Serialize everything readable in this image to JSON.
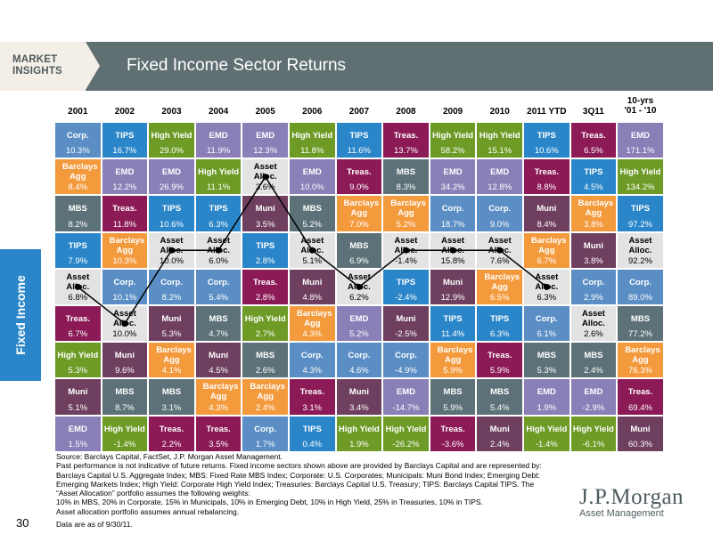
{
  "header": {
    "badge": "MARKET INSIGHTS",
    "title": "Fixed Income Sector Returns"
  },
  "side_label": "Fixed Income",
  "page_number": "30",
  "logo": {
    "name": "J.P.Morgan",
    "subtitle": "Asset Management"
  },
  "colors": {
    "Corp.": "#5b8ec4",
    "TIPS": "#2a86c8",
    "High Yield": "#6d9b26",
    "EMD": "#8b7fb8",
    "Barclays Agg": "#f39a3d",
    "Treas.": "#8b1a56",
    "MBS": "#5c7278",
    "Muni": "#6e3f5e",
    "Asset Alloc.": "#e3e3e3"
  },
  "footnotes": {
    "source": "Source: Barclays Capital, FactSet, J.P. Morgan Asset Management.",
    "line1": "Past performance is not indicative of future returns. Fixed income sectors shown above are provided by Barclays Capital and are represented by: Barclays Capital U.S. Aggregate Index; MBS: Fixed Rate MBS Index; Corporate: U.S. Corporates; Municipals: Muni Bond Index; Emerging Debt: Emerging Markets Index; High Yield: Corporate High Yield Index; Treasuries: Barclays Capital U.S. Treasury; TIPS: Barclays Capital TIPS. The “Asset Allocation” portfolio assumes the following weights:",
    "line2": "10% in MBS, 20% in Corporate, 15% in Municipals, 10% in Emerging Debt, 10% in High Yield, 25% in Treasuries, 10% in TIPS.",
    "line3": "Asset allocation portfolio assumes annual rebalancing.",
    "data_date": "Data are as of 9/30/11."
  },
  "chart_data": {
    "type": "table",
    "columns": [
      "2001",
      "2002",
      "2003",
      "2004",
      "2005",
      "2006",
      "2007",
      "2008",
      "2009",
      "2010",
      "2011 YTD",
      "3Q11",
      "10-yrs '01 - '10"
    ],
    "column_labels": [
      [
        "2001"
      ],
      [
        "2002"
      ],
      [
        "2003"
      ],
      [
        "2004"
      ],
      [
        "2005"
      ],
      [
        "2006"
      ],
      [
        "2007"
      ],
      [
        "2008"
      ],
      [
        "2009"
      ],
      [
        "2010"
      ],
      [
        "2011 YTD"
      ],
      [
        "3Q11"
      ],
      [
        "10-yrs",
        "'01 - '10"
      ]
    ],
    "rank_rows": [
      [
        [
          "Corp.",
          "10.3%"
        ],
        [
          "TIPS",
          "16.7%"
        ],
        [
          "High Yield",
          "29.0%"
        ],
        [
          "EMD",
          "11.9%"
        ],
        [
          "EMD",
          "12.3%"
        ],
        [
          "High Yield",
          "11.8%"
        ],
        [
          "TIPS",
          "11.6%"
        ],
        [
          "Treas.",
          "13.7%"
        ],
        [
          "High Yield",
          "58.2%"
        ],
        [
          "High Yield",
          "15.1%"
        ],
        [
          "TIPS",
          "10.6%"
        ],
        [
          "Treas.",
          "6.5%"
        ],
        [
          "EMD",
          "171.1%"
        ]
      ],
      [
        [
          "Barclays Agg",
          "8.4%"
        ],
        [
          "EMD",
          "12.2%"
        ],
        [
          "EMD",
          "26.9%"
        ],
        [
          "High Yield",
          "11.1%"
        ],
        [
          "Asset Alloc.",
          "3.6%"
        ],
        [
          "EMD",
          "10.0%"
        ],
        [
          "Treas.",
          "9.0%"
        ],
        [
          "MBS",
          "8.3%"
        ],
        [
          "EMD",
          "34.2%"
        ],
        [
          "EMD",
          "12.8%"
        ],
        [
          "Treas.",
          "8.8%"
        ],
        [
          "TIPS",
          "4.5%"
        ],
        [
          "High Yield",
          "134.2%"
        ]
      ],
      [
        [
          "MBS",
          "8.2%"
        ],
        [
          "Treas.",
          "11.8%"
        ],
        [
          "TIPS",
          "10.6%"
        ],
        [
          "TIPS",
          "6.3%"
        ],
        [
          "Muni",
          "3.5%"
        ],
        [
          "MBS",
          "5.2%"
        ],
        [
          "Barclays Agg",
          "7.0%"
        ],
        [
          "Barclays Agg",
          "5.2%"
        ],
        [
          "Corp.",
          "18.7%"
        ],
        [
          "Corp.",
          "9.0%"
        ],
        [
          "Muni",
          "8.4%"
        ],
        [
          "Barclays Agg",
          "3.8%"
        ],
        [
          "TIPS",
          "97.2%"
        ]
      ],
      [
        [
          "TIPS",
          "7.9%"
        ],
        [
          "Barclays Agg",
          "10.3%"
        ],
        [
          "Asset Alloc.",
          "10.0%"
        ],
        [
          "Asset Alloc.",
          "6.0%"
        ],
        [
          "TIPS",
          "2.8%"
        ],
        [
          "Asset Alloc.",
          "5.1%"
        ],
        [
          "MBS",
          "6.9%"
        ],
        [
          "Asset Alloc.",
          "-1.4%"
        ],
        [
          "Asset Alloc.",
          "15.8%"
        ],
        [
          "Asset Alloc.",
          "7.6%"
        ],
        [
          "Barclays Agg",
          "6.7%"
        ],
        [
          "Muni",
          "3.8%"
        ],
        [
          "Asset Alloc.",
          "92.2%"
        ]
      ],
      [
        [
          "Asset Alloc.",
          "6.8%"
        ],
        [
          "Corp.",
          "10.1%"
        ],
        [
          "Corp.",
          "8.2%"
        ],
        [
          "Corp.",
          "5.4%"
        ],
        [
          "Treas.",
          "2.8%"
        ],
        [
          "Muni",
          "4.8%"
        ],
        [
          "Asset Alloc.",
          "6.2%"
        ],
        [
          "TIPS",
          "-2.4%"
        ],
        [
          "Muni",
          "12.9%"
        ],
        [
          "Barclays Agg",
          "6.5%"
        ],
        [
          "Asset Alloc.",
          "6.3%"
        ],
        [
          "Corp.",
          "2.9%"
        ],
        [
          "Corp.",
          "89.0%"
        ]
      ],
      [
        [
          "Treas.",
          "6.7%"
        ],
        [
          "Asset Alloc.",
          "10.0%"
        ],
        [
          "Muni",
          "5.3%"
        ],
        [
          "MBS",
          "4.7%"
        ],
        [
          "High Yield",
          "2.7%"
        ],
        [
          "Barclays Agg",
          "4.3%"
        ],
        [
          "EMD",
          "5.2%"
        ],
        [
          "Muni",
          "-2.5%"
        ],
        [
          "TIPS",
          "11.4%"
        ],
        [
          "TIPS",
          "6.3%"
        ],
        [
          "Corp.",
          "6.1%"
        ],
        [
          "Asset Alloc.",
          "2.6%"
        ],
        [
          "MBS",
          "77.2%"
        ]
      ],
      [
        [
          "High Yield",
          "5.3%"
        ],
        [
          "Muni",
          "9.6%"
        ],
        [
          "Barclays Agg",
          "4.1%"
        ],
        [
          "Muni",
          "4.5%"
        ],
        [
          "MBS",
          "2.6%"
        ],
        [
          "Corp.",
          "4.3%"
        ],
        [
          "Corp.",
          "4.6%"
        ],
        [
          "Corp.",
          "-4.9%"
        ],
        [
          "Barclays Agg",
          "5.9%"
        ],
        [
          "Treas.",
          "5.9%"
        ],
        [
          "MBS",
          "5.3%"
        ],
        [
          "MBS",
          "2.4%"
        ],
        [
          "Barclays Agg",
          "76.3%"
        ]
      ],
      [
        [
          "Muni",
          "5.1%"
        ],
        [
          "MBS",
          "8.7%"
        ],
        [
          "MBS",
          "3.1%"
        ],
        [
          "Barclays Agg",
          "4.3%"
        ],
        [
          "Barclays Agg",
          "2.4%"
        ],
        [
          "Treas.",
          "3.1%"
        ],
        [
          "Muni",
          "3.4%"
        ],
        [
          "EMD",
          "-14.7%"
        ],
        [
          "MBS",
          "5.9%"
        ],
        [
          "MBS",
          "5.4%"
        ],
        [
          "EMD",
          "1.9%"
        ],
        [
          "EMD",
          "-2.9%"
        ],
        [
          "Treas.",
          "69.4%"
        ]
      ],
      [
        [
          "EMD",
          "1.5%"
        ],
        [
          "High Yield",
          "-1.4%"
        ],
        [
          "Treas.",
          "2.2%"
        ],
        [
          "Treas.",
          "3.5%"
        ],
        [
          "Corp.",
          "1.7%"
        ],
        [
          "TIPS",
          "0.4%"
        ],
        [
          "High Yield",
          "1.9%"
        ],
        [
          "High Yield",
          "-26.2%"
        ],
        [
          "Treas.",
          "-3.6%"
        ],
        [
          "Muni",
          "2.4%"
        ],
        [
          "High Yield",
          "-1.4%"
        ],
        [
          "High Yield",
          "-6.1%"
        ],
        [
          "Muni",
          "60.3%"
        ]
      ]
    ],
    "asset_alloc_line": {
      "columns": [
        "2001",
        "2002",
        "2003",
        "2004",
        "2005",
        "2006",
        "2007",
        "2008",
        "2009",
        "2010",
        "2011 YTD"
      ],
      "rank": [
        5,
        6,
        4,
        4,
        2,
        4,
        5,
        4,
        4,
        4,
        5
      ]
    }
  }
}
